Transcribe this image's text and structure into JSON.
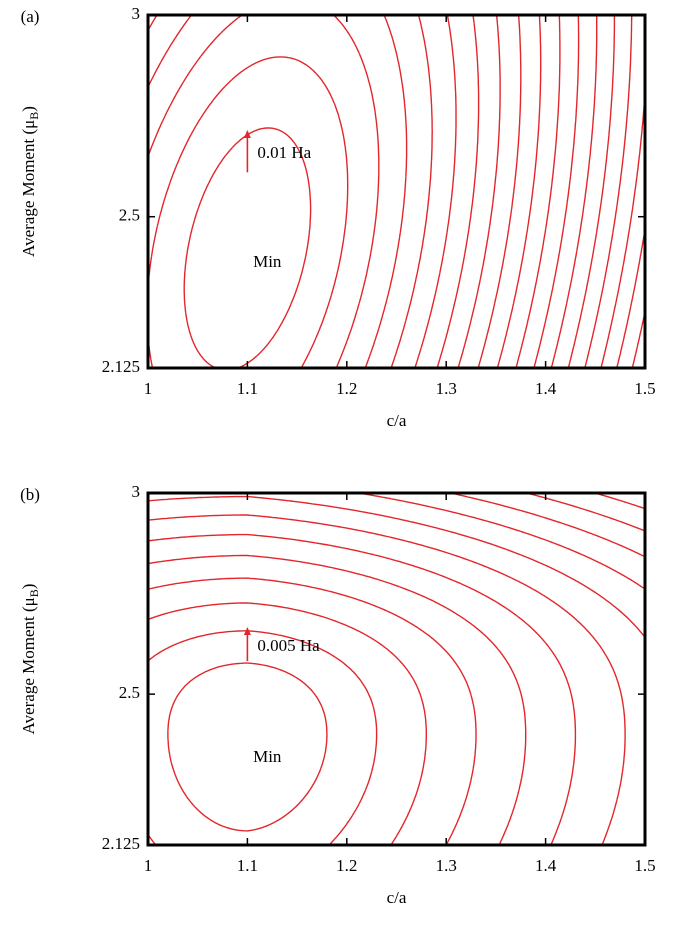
{
  "chart_data": [
    {
      "type": "contour",
      "title": "(a)",
      "xlabel": "c/a",
      "ylabel": [
        "Average Moment (μ",
        "B",
        ")"
      ],
      "xlim": [
        1,
        1.5
      ],
      "ylim": [
        2.125,
        3
      ],
      "xticks": [
        1,
        1.1,
        1.2,
        1.3,
        1.4,
        1.5
      ],
      "yticks": [
        2.125,
        2.5,
        3
      ],
      "color": "#e3262b",
      "annotations": [
        {
          "text": "Min",
          "x": 1.12,
          "y": 2.385
        },
        {
          "text": "0.01 Ha",
          "x": 1.1,
          "y_from": 2.61,
          "y_to": 2.715
        }
      ]
    },
    {
      "type": "contour",
      "title": "(b)",
      "xlabel": "c/a",
      "ylabel": [
        "Average Moment (μ",
        "B",
        ")"
      ],
      "xlim": [
        1,
        1.5
      ],
      "ylim": [
        2.125,
        3
      ],
      "xticks": [
        1,
        1.1,
        1.2,
        1.3,
        1.4,
        1.5
      ],
      "yticks": [
        2.125,
        2.5,
        3
      ],
      "color": "#e3262b",
      "annotations": [
        {
          "text": "Min",
          "x": 1.12,
          "y": 2.341
        },
        {
          "text": "0.005 Ha",
          "x": 1.1,
          "y_from": 2.582,
          "y_to": 2.667
        }
      ]
    }
  ]
}
